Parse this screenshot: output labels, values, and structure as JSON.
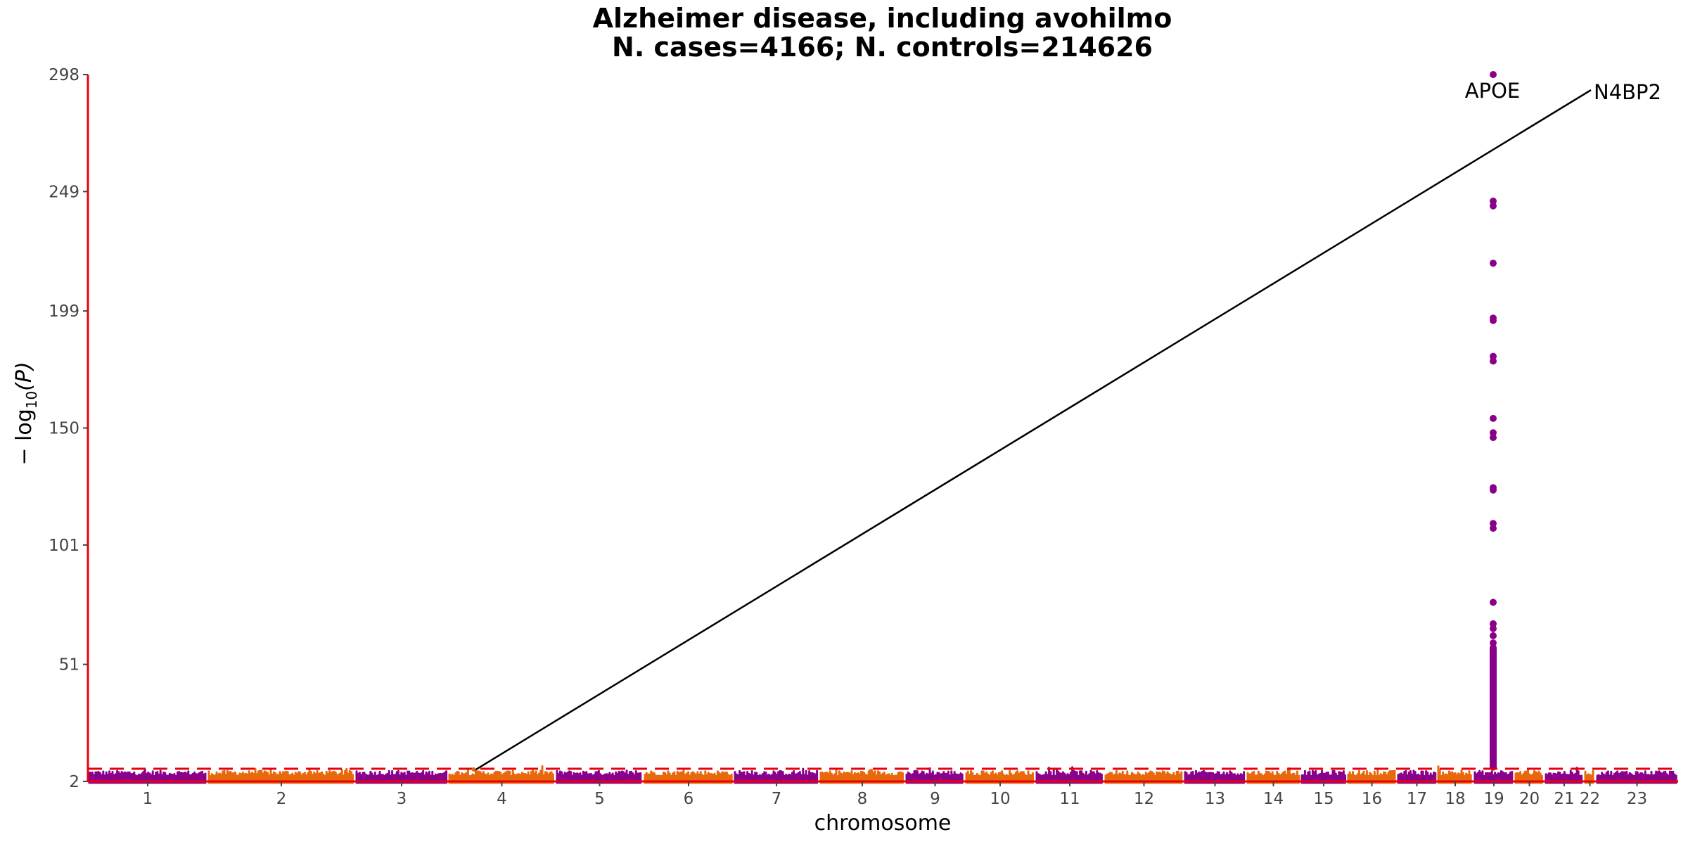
{
  "chart_data": {
    "type": "scatter",
    "subtype": "manhattan",
    "title_line1": "Alzheimer disease, including avohilmo",
    "title_line2": "N. cases=4166; N. controls=214626",
    "xlabel": "chromosome",
    "ylabel_prefix": "− log",
    "ylabel_sub": "10",
    "ylabel_suffix": "(P)",
    "ylim": [
      2,
      298
    ],
    "y_ticks": [
      2,
      51,
      101,
      150,
      199,
      249,
      298
    ],
    "chromosomes": [
      "1",
      "2",
      "3",
      "4",
      "5",
      "6",
      "7",
      "8",
      "9",
      "10",
      "11",
      "12",
      "13",
      "14",
      "15",
      "16",
      "17",
      "18",
      "19",
      "20",
      "21",
      "22",
      "23"
    ],
    "chromosome_colors": [
      "#8B008B",
      "#E8690B"
    ],
    "significance_threshold": 7.3,
    "threshold_color": "#E8000B",
    "axis_color": "#E8000B",
    "grid": false,
    "peak": {
      "chromosome": "19",
      "color": "#8B008B",
      "values": [
        298,
        245,
        243,
        219,
        196,
        195,
        180,
        178,
        154,
        148,
        146,
        125,
        124,
        110,
        108,
        77,
        68,
        66,
        63,
        60,
        55,
        52,
        49,
        46,
        43,
        40,
        37,
        34,
        31,
        28,
        25,
        22,
        19,
        16,
        13,
        10,
        8
      ]
    },
    "annotations": [
      {
        "label": "APOE",
        "chromosome": "19",
        "y": 298
      },
      {
        "label": "N4BP2",
        "chromosome": "4",
        "y": 7.3,
        "leader_line": true
      }
    ]
  }
}
